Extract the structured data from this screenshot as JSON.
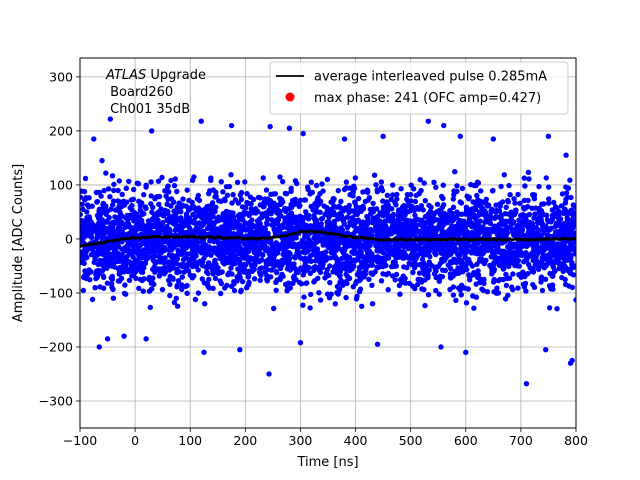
{
  "chart_data": {
    "type": "scatter",
    "title": "",
    "xlabel": "Time [ns]",
    "ylabel": "Amplitude [ADC Counts]",
    "xlim": [
      -100,
      800
    ],
    "ylim": [
      -350,
      335
    ],
    "xticks": [
      -100,
      0,
      100,
      200,
      300,
      400,
      500,
      600,
      700,
      800
    ],
    "xtick_labels": [
      "−100",
      "0",
      "100",
      "200",
      "300",
      "400",
      "500",
      "600",
      "700",
      "800"
    ],
    "yticks": [
      -300,
      -200,
      -100,
      0,
      100,
      200,
      300
    ],
    "ytick_labels": [
      "−300",
      "−200",
      "−100",
      "0",
      "100",
      "200",
      "300"
    ],
    "grid": true,
    "legend_position": "top-right",
    "annotation": {
      "line1_italic": "ATLAS",
      "line1_rest": " Upgrade",
      "line2": " Board260",
      "line3": " Ch001 35dB"
    },
    "series": [
      {
        "name": "average interleaved pulse 0.285mA",
        "kind": "line",
        "color": "#000000",
        "x": [
          -100,
          -80,
          -60,
          -40,
          -20,
          0,
          20,
          40,
          60,
          80,
          100,
          120,
          140,
          160,
          180,
          200,
          220,
          240,
          260,
          280,
          300,
          320,
          340,
          360,
          380,
          400,
          420,
          440,
          460,
          480,
          500,
          520,
          540,
          560,
          580,
          600,
          620,
          640,
          660,
          680,
          700,
          720,
          740,
          760,
          780,
          800
        ],
        "y": [
          -14,
          -10,
          -6,
          -3,
          0,
          2,
          3,
          4,
          3,
          3,
          4,
          3,
          3,
          2,
          2,
          1,
          1,
          2,
          4,
          8,
          13,
          14,
          12,
          9,
          6,
          3,
          1,
          -1,
          -1,
          -1,
          -1,
          -1,
          -1,
          -1,
          -1,
          -1,
          -1,
          -1,
          -1,
          -1,
          -1,
          -1,
          -1,
          0,
          0,
          0
        ]
      },
      {
        "name": "max phase: 241 (OFC amp=0.427)",
        "kind": "scatter",
        "color": "#ff0000",
        "x": [],
        "y": []
      },
      {
        "name": "",
        "kind": "scatter-noise",
        "color": "#0000ff",
        "description_only_for_render": "",
        "outliers": [
          {
            "x": -45,
            "y": 222
          },
          {
            "x": -75,
            "y": 185
          },
          {
            "x": -60,
            "y": 145
          },
          {
            "x": -90,
            "y": 112
          },
          {
            "x": 30,
            "y": 200
          },
          {
            "x": 120,
            "y": 218
          },
          {
            "x": 175,
            "y": 210
          },
          {
            "x": 245,
            "y": 208
          },
          {
            "x": 280,
            "y": 205
          },
          {
            "x": 305,
            "y": 195
          },
          {
            "x": 380,
            "y": 185
          },
          {
            "x": 450,
            "y": 190
          },
          {
            "x": 532,
            "y": 218
          },
          {
            "x": 560,
            "y": 210
          },
          {
            "x": 590,
            "y": 190
          },
          {
            "x": 650,
            "y": 185
          },
          {
            "x": 750,
            "y": 190
          },
          {
            "x": 782,
            "y": 155
          },
          {
            "x": -65,
            "y": -200
          },
          {
            "x": -50,
            "y": -185
          },
          {
            "x": -20,
            "y": -180
          },
          {
            "x": 20,
            "y": -185
          },
          {
            "x": 125,
            "y": -210
          },
          {
            "x": 190,
            "y": -205
          },
          {
            "x": 243,
            "y": -250
          },
          {
            "x": 300,
            "y": -192
          },
          {
            "x": 440,
            "y": -195
          },
          {
            "x": 555,
            "y": -200
          },
          {
            "x": 600,
            "y": -210
          },
          {
            "x": 710,
            "y": -268
          },
          {
            "x": 745,
            "y": -205
          },
          {
            "x": 793,
            "y": -225
          },
          {
            "x": 790,
            "y": -230
          }
        ],
        "band": {
          "mean": 0,
          "sigma": 45,
          "points": 4200
        }
      }
    ]
  }
}
